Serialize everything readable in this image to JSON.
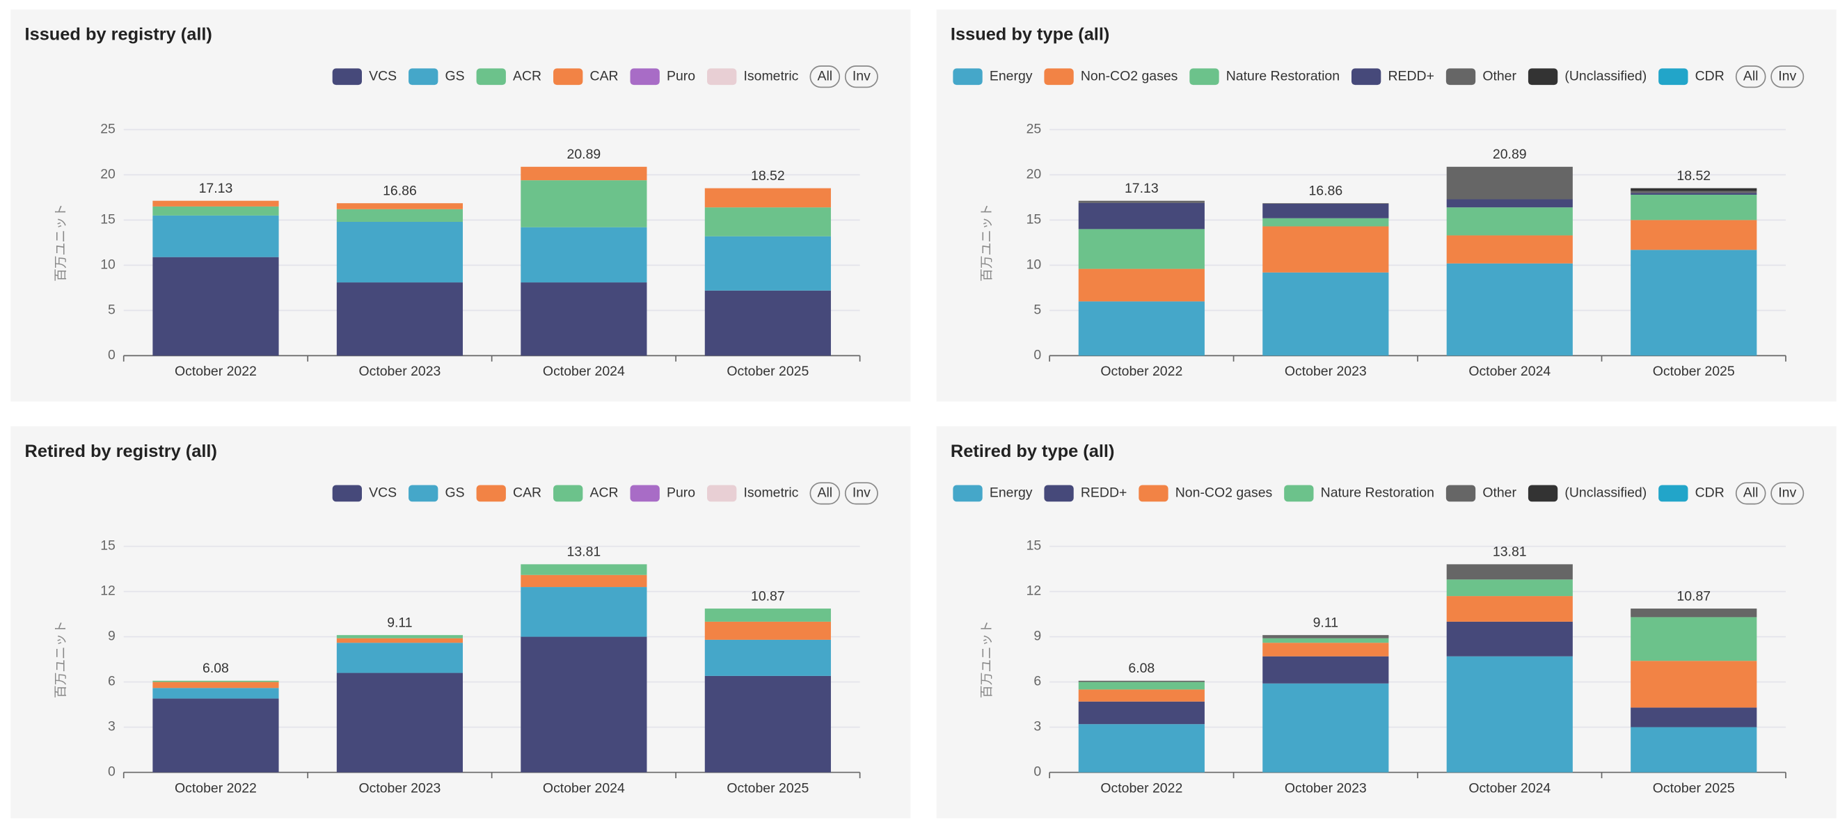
{
  "chart_data": [
    {
      "type": "bar",
      "stacked": true,
      "grid": true,
      "title": "Issued by registry (all)",
      "y_label": "百万ユニット",
      "categories": [
        "October 2022",
        "October 2023",
        "October 2024",
        "October 2025"
      ],
      "series": [
        {
          "name": "VCS",
          "color": "#46497a",
          "values": [
            10.9,
            8.1,
            8.1,
            7.2
          ]
        },
        {
          "name": "GS",
          "color": "#45a7c9",
          "values": [
            4.6,
            6.7,
            6.1,
            6.0
          ]
        },
        {
          "name": "ACR",
          "color": "#6cc28b",
          "values": [
            1.0,
            1.4,
            5.2,
            3.2
          ]
        },
        {
          "name": "CAR",
          "color": "#f28345",
          "values": [
            0.63,
            0.66,
            1.49,
            2.12
          ]
        },
        {
          "name": "Puro",
          "color": "#a86cc6",
          "values": [
            0,
            0,
            0,
            0
          ]
        },
        {
          "name": "Isometric",
          "color": "#e8cfd4",
          "values": [
            0,
            0,
            0,
            0
          ]
        }
      ],
      "totals": [
        17.13,
        16.86,
        20.89,
        18.52
      ],
      "buttons": [
        "All",
        "Inv"
      ],
      "ylim": [
        0,
        25
      ],
      "yticks": [
        0,
        5,
        10,
        15,
        20,
        25
      ]
    },
    {
      "type": "bar",
      "stacked": true,
      "grid": true,
      "title": "Issued by type (all)",
      "y_label": "百万ユニット",
      "categories": [
        "October 2022",
        "October 2023",
        "October 2024",
        "October 2025"
      ],
      "series": [
        {
          "name": "Energy",
          "color": "#45a7c9",
          "values": [
            6.0,
            9.2,
            10.2,
            11.7
          ]
        },
        {
          "name": "Non-CO2 gases",
          "color": "#f28345",
          "values": [
            3.6,
            5.1,
            3.1,
            3.3
          ]
        },
        {
          "name": "Nature Restoration",
          "color": "#6cc28b",
          "values": [
            4.4,
            0.9,
            3.1,
            2.8
          ]
        },
        {
          "name": "REDD+",
          "color": "#46497a",
          "values": [
            2.9,
            1.6,
            0.9,
            0.2
          ]
        },
        {
          "name": "Other",
          "color": "#666666",
          "values": [
            0.23,
            0.06,
            3.59,
            0.2
          ]
        },
        {
          "name": "(Unclassified)",
          "color": "#333333",
          "values": [
            0,
            0,
            0,
            0.32
          ]
        },
        {
          "name": "CDR",
          "color": "#22a5c9",
          "values": [
            0,
            0,
            0,
            0
          ]
        }
      ],
      "totals": [
        17.13,
        16.86,
        20.89,
        18.52
      ],
      "buttons": [
        "All",
        "Inv"
      ],
      "ylim": [
        0,
        25
      ],
      "yticks": [
        0,
        5,
        10,
        15,
        20,
        25
      ]
    },
    {
      "type": "bar",
      "stacked": true,
      "grid": true,
      "title": "Retired by registry (all)",
      "y_label": "百万ユニット",
      "categories": [
        "October 2022",
        "October 2023",
        "October 2024",
        "October 2025"
      ],
      "series": [
        {
          "name": "VCS",
          "color": "#46497a",
          "values": [
            4.9,
            6.6,
            9.0,
            6.4
          ]
        },
        {
          "name": "GS",
          "color": "#45a7c9",
          "values": [
            0.7,
            2.0,
            3.3,
            2.4
          ]
        },
        {
          "name": "CAR",
          "color": "#f28345",
          "values": [
            0.4,
            0.3,
            0.8,
            1.2
          ]
        },
        {
          "name": "ACR",
          "color": "#6cc28b",
          "values": [
            0.08,
            0.21,
            0.71,
            0.87
          ]
        },
        {
          "name": "Puro",
          "color": "#a86cc6",
          "values": [
            0,
            0,
            0,
            0
          ]
        },
        {
          "name": "Isometric",
          "color": "#e8cfd4",
          "values": [
            0,
            0,
            0,
            0
          ]
        }
      ],
      "totals": [
        6.08,
        9.11,
        13.81,
        10.87
      ],
      "buttons": [
        "All",
        "Inv"
      ],
      "ylim": [
        0,
        15
      ],
      "yticks": [
        0,
        3,
        6,
        9,
        12,
        15
      ]
    },
    {
      "type": "bar",
      "stacked": true,
      "grid": true,
      "title": "Retired by type (all)",
      "y_label": "百万ユニット",
      "categories": [
        "October 2022",
        "October 2023",
        "October 2024",
        "October 2025"
      ],
      "series": [
        {
          "name": "Energy",
          "color": "#45a7c9",
          "values": [
            3.2,
            5.9,
            7.7,
            3.0
          ]
        },
        {
          "name": "REDD+",
          "color": "#46497a",
          "values": [
            1.5,
            1.8,
            2.3,
            1.3
          ]
        },
        {
          "name": "Non-CO2 gases",
          "color": "#f28345",
          "values": [
            0.8,
            0.9,
            1.7,
            3.1
          ]
        },
        {
          "name": "Nature Restoration",
          "color": "#6cc28b",
          "values": [
            0.5,
            0.3,
            1.1,
            2.9
          ]
        },
        {
          "name": "Other",
          "color": "#666666",
          "values": [
            0.08,
            0.21,
            1.01,
            0.57
          ]
        },
        {
          "name": "(Unclassified)",
          "color": "#333333",
          "values": [
            0,
            0,
            0,
            0
          ]
        },
        {
          "name": "CDR",
          "color": "#22a5c9",
          "values": [
            0,
            0,
            0,
            0
          ]
        }
      ],
      "totals": [
        6.08,
        9.11,
        13.81,
        10.87
      ],
      "buttons": [
        "All",
        "Inv"
      ],
      "ylim": [
        0,
        15
      ],
      "yticks": [
        0,
        3,
        6,
        9,
        12,
        15
      ]
    }
  ]
}
